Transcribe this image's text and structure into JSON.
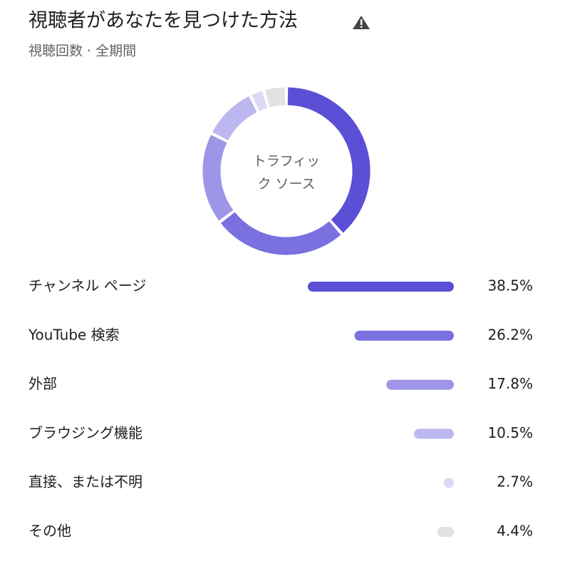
{
  "chart_data": {
    "type": "pie",
    "title": "視聴者があなたを見つけた方法",
    "subtitle": "視聴回数 · 全期間",
    "center_label": "トラフィック ソース",
    "categories": [
      "チャンネル ページ",
      "YouTube 検索",
      "外部",
      "ブラウジング機能",
      "直接、または不明",
      "その他"
    ],
    "values": [
      38.5,
      26.2,
      17.8,
      10.5,
      2.7,
      4.4
    ],
    "value_labels": [
      "38.5%",
      "26.2%",
      "17.8%",
      "10.5%",
      "2.7%",
      "4.4%"
    ],
    "colors": [
      "#5b4fd6",
      "#7b70e0",
      "#9e95e8",
      "#bdb7f0",
      "#dcd9f6",
      "#e2e2e2"
    ]
  }
}
